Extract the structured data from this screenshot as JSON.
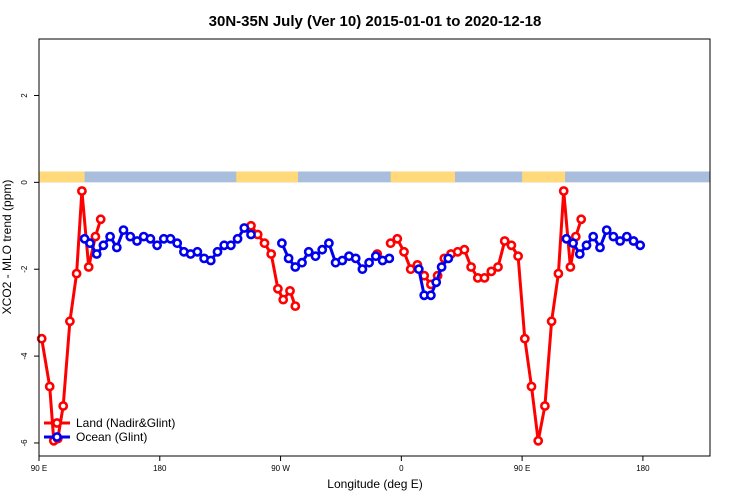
{
  "chart_data": {
    "type": "line",
    "title": "30N-35N July (Ver 10)   2015-01-01 to 2020-12-18",
    "xlabel": "Longitude (deg E)",
    "ylabel": "XCO2 - MLO trend (ppm)",
    "xlim": [
      0,
      500
    ],
    "ylim": [
      -6.3,
      3.3
    ],
    "x_ticks": [
      {
        "value": 0,
        "label": "90 E"
      },
      {
        "value": 90,
        "label": "180"
      },
      {
        "value": 180,
        "label": "90 W"
      },
      {
        "value": 270,
        "label": "0"
      },
      {
        "value": 360,
        "label": "90 E"
      },
      {
        "value": 450,
        "label": "180"
      }
    ],
    "y_ticks": [
      {
        "value": 2,
        "label": "2"
      },
      {
        "value": 0,
        "label": "0"
      },
      {
        "value": -2,
        "label": "-2"
      },
      {
        "value": -4,
        "label": "-4"
      },
      {
        "value": -6,
        "label": "-6"
      }
    ],
    "legend_position": "bottom-left",
    "surface_band": {
      "y_bottom": 0.0,
      "y_top": 0.25,
      "land_color": "#ffd97a",
      "ocean_color": "#a8bedc",
      "land_ranges": [
        [
          0,
          34
        ],
        [
          147,
          193
        ],
        [
          262,
          310
        ],
        [
          360,
          392
        ]
      ]
    },
    "series": [
      {
        "name": "Land (Nadir&Glint)",
        "color": "#ff0000",
        "points": [
          [
            2,
            -3.6
          ],
          [
            8,
            -4.7
          ],
          [
            11,
            -5.95
          ],
          [
            14,
            -5.9
          ],
          [
            18,
            -5.15
          ],
          [
            23,
            -3.2
          ],
          [
            28,
            -2.1
          ],
          [
            32,
            -0.2
          ],
          [
            37,
            -1.95
          ],
          [
            42,
            -1.25
          ],
          [
            46,
            -0.85
          ],
          null,
          [
            158,
            -1.0
          ],
          [
            163,
            -1.2
          ],
          [
            168,
            -1.4
          ],
          [
            173,
            -1.65
          ],
          [
            178,
            -2.45
          ],
          [
            182,
            -2.7
          ],
          [
            187,
            -2.5
          ],
          [
            191,
            -2.85
          ],
          null,
          [
            252,
            -1.65
          ],
          null,
          [
            262,
            -1.4
          ],
          [
            267,
            -1.3
          ],
          [
            272,
            -1.6
          ],
          [
            277,
            -2.0
          ],
          [
            282,
            -1.9
          ],
          [
            287,
            -2.15
          ],
          [
            292,
            -2.35
          ],
          [
            297,
            -2.15
          ],
          [
            302,
            -1.75
          ],
          [
            307,
            -1.65
          ],
          [
            312,
            -1.6
          ],
          [
            317,
            -1.55
          ],
          [
            322,
            -1.95
          ],
          [
            327,
            -2.2
          ],
          [
            332,
            -2.2
          ],
          [
            337,
            -2.05
          ],
          [
            342,
            -1.95
          ],
          [
            347,
            -1.35
          ],
          [
            352,
            -1.45
          ],
          [
            357,
            -1.7
          ],
          [
            362,
            -3.6
          ],
          [
            367,
            -4.7
          ],
          [
            372,
            -5.95
          ],
          [
            377,
            -5.15
          ],
          [
            382,
            -3.2
          ],
          [
            387,
            -2.1
          ],
          [
            391,
            -0.2
          ],
          [
            396,
            -1.95
          ],
          [
            400,
            -1.25
          ],
          [
            404,
            -0.85
          ]
        ]
      },
      {
        "name": "Ocean (Glint)",
        "color": "#0000ee",
        "points": [
          [
            34,
            -1.3
          ],
          [
            38,
            -1.4
          ],
          [
            43,
            -1.65
          ],
          [
            48,
            -1.45
          ],
          [
            53,
            -1.25
          ],
          [
            58,
            -1.5
          ],
          [
            63,
            -1.1
          ],
          [
            68,
            -1.25
          ],
          [
            73,
            -1.35
          ],
          [
            78,
            -1.25
          ],
          [
            83,
            -1.3
          ],
          [
            88,
            -1.45
          ],
          [
            93,
            -1.3
          ],
          [
            98,
            -1.3
          ],
          [
            103,
            -1.4
          ],
          [
            108,
            -1.6
          ],
          [
            113,
            -1.65
          ],
          [
            118,
            -1.6
          ],
          [
            123,
            -1.75
          ],
          [
            128,
            -1.8
          ],
          [
            133,
            -1.6
          ],
          [
            138,
            -1.45
          ],
          [
            143,
            -1.45
          ],
          [
            148,
            -1.3
          ],
          [
            153,
            -1.05
          ],
          [
            158,
            -1.2
          ],
          null,
          [
            181,
            -1.4
          ],
          [
            186,
            -1.75
          ],
          [
            191,
            -1.95
          ],
          [
            196,
            -1.85
          ],
          [
            201,
            -1.6
          ],
          [
            206,
            -1.7
          ],
          [
            211,
            -1.55
          ],
          [
            216,
            -1.4
          ],
          [
            221,
            -1.85
          ],
          [
            226,
            -1.8
          ],
          [
            231,
            -1.7
          ],
          [
            236,
            -1.75
          ],
          [
            241,
            -2.0
          ],
          [
            246,
            -1.85
          ],
          [
            251,
            -1.7
          ],
          [
            256,
            -1.8
          ],
          [
            261,
            -1.75
          ],
          null,
          [
            283,
            -2.0
          ],
          [
            287,
            -2.6
          ],
          [
            292,
            -2.6
          ],
          [
            296,
            -2.3
          ],
          [
            300,
            -1.95
          ],
          [
            305,
            -1.75
          ],
          null,
          [
            393,
            -1.3
          ],
          [
            398,
            -1.4
          ],
          [
            403,
            -1.65
          ],
          [
            408,
            -1.45
          ],
          [
            413,
            -1.25
          ],
          [
            418,
            -1.5
          ],
          [
            423,
            -1.1
          ],
          [
            428,
            -1.25
          ],
          [
            433,
            -1.35
          ],
          [
            438,
            -1.25
          ],
          [
            443,
            -1.35
          ],
          [
            448,
            -1.45
          ]
        ]
      }
    ]
  }
}
